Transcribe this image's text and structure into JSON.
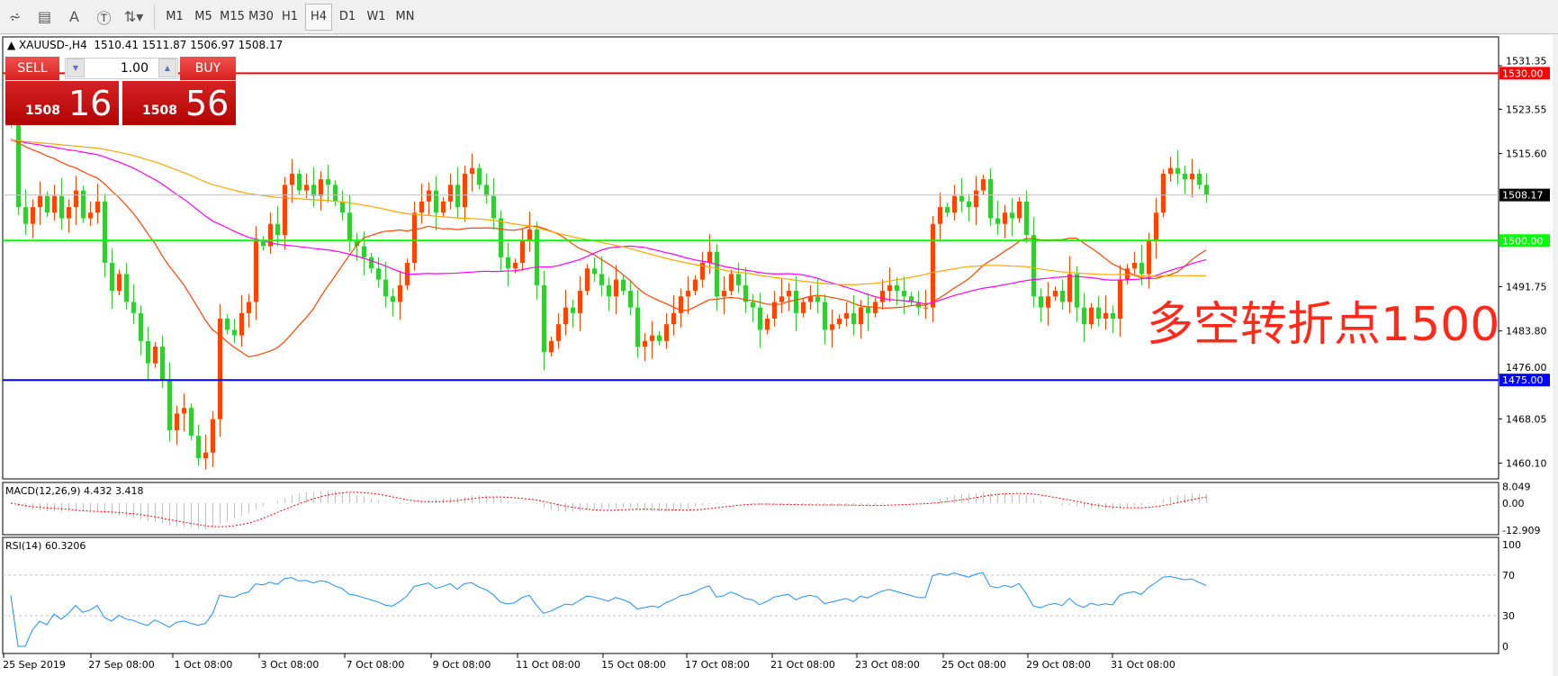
{
  "toolbar": {
    "tools": [
      {
        "name": "elliott-tool-icon",
        "glyph": "⩫"
      },
      {
        "name": "fibonacci-tool-icon",
        "glyph": "▤"
      },
      {
        "name": "text-tool-icon",
        "glyph": "A"
      },
      {
        "name": "text-label-tool-icon",
        "glyph": "Ⓣ"
      },
      {
        "name": "arrows-tool-icon",
        "glyph": "⇅▾"
      }
    ],
    "timeframes": [
      "M1",
      "M5",
      "M15",
      "M30",
      "H1",
      "H4",
      "D1",
      "W1",
      "MN"
    ],
    "active_timeframe": "H4"
  },
  "legend": {
    "symbol": "XAUUSD-,H4",
    "ohlc": "1510.41 1511.87 1506.97 1508.17"
  },
  "trade_panel": {
    "sell_label": "SELL",
    "buy_label": "BUY",
    "lot": "1.00",
    "sell_big": "1508",
    "sell_small": "16",
    "buy_big": "1508",
    "buy_small": "56"
  },
  "annotation": "多空转折点1500",
  "colors": {
    "bull": "#ff4500",
    "bear": "#32cd32",
    "ma_fast": "#ff4500",
    "ma_mid": "#ff00ff",
    "ma_slow": "#ffa500",
    "resistance": "#ff0000",
    "pivot": "#00ff00",
    "support": "#0000ff"
  },
  "chart_data": [
    {
      "type": "candlestick",
      "title": "XAUUSD-,H4",
      "ylim": [
        1456.5,
        1535.5
      ],
      "price_ticks": [
        "1531.35",
        "1523.55",
        "1515.60",
        "1491.75",
        "1483.80",
        "1476.00",
        "1468.05",
        "1460.10"
      ],
      "hlines": [
        {
          "value": 1530.0,
          "label": "1530.00",
          "color": "#ff0000"
        },
        {
          "value": 1508.17,
          "label": "1508.17",
          "color": "#000000"
        },
        {
          "value": 1500.0,
          "label": "1500.00",
          "color": "#00ff00"
        },
        {
          "value": 1475.0,
          "label": "1475.00",
          "color": "#0000ff"
        }
      ],
      "x_labels": [
        "25 Sep 2019",
        "27 Sep 08:00",
        "1 Oct 08:00",
        "3 Oct 08:00",
        "7 Oct 08:00",
        "9 Oct 08:00",
        "11 Oct 08:00",
        "15 Oct 08:00",
        "17 Oct 08:00",
        "21 Oct 08:00",
        "23 Oct 08:00",
        "25 Oct 08:00",
        "29 Oct 08:00",
        "31 Oct 08:00"
      ],
      "close": [
        1521,
        1506,
        1503,
        1506,
        1508,
        1505,
        1508,
        1504,
        1506,
        1509,
        1504,
        1505,
        1507,
        1496,
        1491,
        1494,
        1489,
        1487,
        1482,
        1478,
        1481,
        1475,
        1466,
        1469,
        1470,
        1465,
        1461,
        1462,
        1468,
        1486,
        1484,
        1483,
        1487,
        1489,
        1500,
        1499,
        1503,
        1501,
        1510,
        1512,
        1509,
        1510,
        1508,
        1511,
        1510,
        1507,
        1505,
        1500,
        1499,
        1497,
        1495,
        1493,
        1490,
        1489,
        1492,
        1496,
        1505,
        1507,
        1509,
        1505,
        1507,
        1510,
        1506,
        1512,
        1513,
        1510,
        1508,
        1504,
        1497,
        1495,
        1496,
        1500,
        1502,
        1492,
        1480,
        1482,
        1485,
        1488,
        1487,
        1491,
        1495,
        1494,
        1492,
        1490,
        1493,
        1491,
        1488,
        1481,
        1482,
        1483,
        1482,
        1485,
        1487,
        1490,
        1491,
        1493,
        1496,
        1498,
        1490,
        1491,
        1494,
        1492,
        1489,
        1488,
        1484,
        1486,
        1489,
        1490,
        1491,
        1487,
        1489,
        1490,
        1489,
        1484,
        1485,
        1486,
        1487,
        1485,
        1488,
        1487,
        1489,
        1491,
        1492,
        1491,
        1490,
        1489,
        1488,
        1488,
        1503,
        1506,
        1505,
        1508,
        1507,
        1506,
        1509,
        1511,
        1504,
        1503,
        1505,
        1504,
        1507,
        1501,
        1490,
        1488,
        1490,
        1491,
        1489,
        1494,
        1488,
        1485,
        1488,
        1486,
        1487,
        1486,
        1493,
        1495,
        1496,
        1494,
        1500,
        1505,
        1512,
        1513,
        1512,
        1511,
        1512,
        1510,
        1508.17
      ]
    },
    {
      "type": "line",
      "title": "MACD(12,26,9) 4.432 3.418",
      "y_ticks": [
        "8.049",
        "0.00",
        "-12.909"
      ],
      "ylim": [
        -12.909,
        8.049
      ]
    },
    {
      "type": "line",
      "title": "RSI(14) 60.3206",
      "y_ticks": [
        "100",
        "70",
        "30",
        "0"
      ],
      "ylim": [
        0,
        100
      ],
      "levels": [
        70,
        30
      ]
    }
  ]
}
